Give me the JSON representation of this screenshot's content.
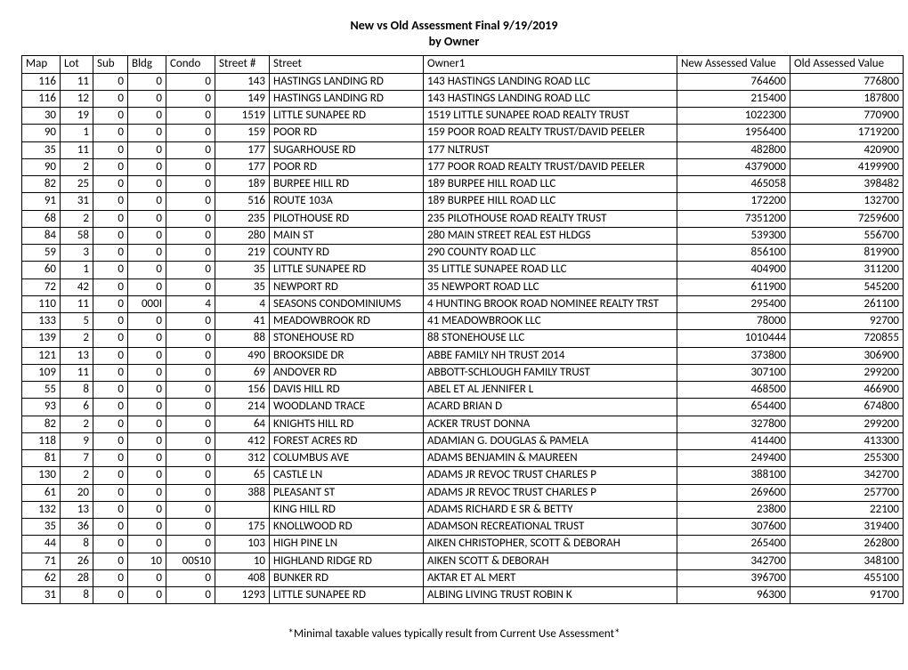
{
  "title_line1": "New vs Old Assessment Final 9/19/2019",
  "title_line2": "by Owner",
  "footnote": "*Minimal taxable values typically result from Current Use Assessment*",
  "columns": [
    "Map",
    "Lot",
    "Sub",
    "Bldg",
    "Condo",
    "Street #",
    "Street",
    "Owner1",
    "New Assessed Value",
    "Old Assessed Value"
  ],
  "rows": [
    [
      "116",
      "11",
      "0",
      "0",
      "0",
      "143",
      "HASTINGS LANDING RD",
      "143 HASTINGS LANDING ROAD LLC",
      "764600",
      "776800"
    ],
    [
      "116",
      "12",
      "0",
      "0",
      "0",
      "149",
      "HASTINGS LANDING RD",
      "143 HASTINGS LANDING ROAD LLC",
      "215400",
      "187800"
    ],
    [
      "30",
      "19",
      "0",
      "0",
      "0",
      "1519",
      "LITTLE SUNAPEE RD",
      "1519  LITTLE SUNAPEE ROAD REALTY TRUST",
      "1022300",
      "770900"
    ],
    [
      "90",
      "1",
      "0",
      "0",
      "0",
      "159",
      "POOR RD",
      "159 POOR ROAD REALTY TRUST/DAVID PEELER",
      "1956400",
      "1719200"
    ],
    [
      "35",
      "11",
      "0",
      "0",
      "0",
      "177",
      "SUGARHOUSE RD",
      "177 NLTRUST",
      "482800",
      "420900"
    ],
    [
      "90",
      "2",
      "0",
      "0",
      "0",
      "177",
      "POOR RD",
      "177 POOR ROAD REALTY TRUST/DAVID PEELER",
      "4379000",
      "4199900"
    ],
    [
      "82",
      "25",
      "0",
      "0",
      "0",
      "189",
      "BURPEE HILL RD",
      "189 BURPEE HILL ROAD LLC",
      "465058",
      "398482"
    ],
    [
      "91",
      "31",
      "0",
      "0",
      "0",
      "516",
      "ROUTE 103A",
      "189 BURPEE HILL ROAD LLC",
      "172200",
      "132700"
    ],
    [
      "68",
      "2",
      "0",
      "0",
      "0",
      "235",
      "PILOTHOUSE RD",
      "235 PILOTHOUSE ROAD REALTY TRUST",
      "7351200",
      "7259600"
    ],
    [
      "84",
      "58",
      "0",
      "0",
      "0",
      "280",
      "MAIN ST",
      "280 MAIN STREET REAL EST HLDGS",
      "539300",
      "556700"
    ],
    [
      "59",
      "3",
      "0",
      "0",
      "0",
      "219",
      "COUNTY RD",
      "290 COUNTY ROAD LLC",
      "856100",
      "819900"
    ],
    [
      "60",
      "1",
      "0",
      "0",
      "0",
      "35",
      "LITTLE SUNAPEE RD",
      "35 LITTLE SUNAPEE ROAD LLC",
      "404900",
      "311200"
    ],
    [
      "72",
      "42",
      "0",
      "0",
      "0",
      "35",
      "NEWPORT RD",
      "35 NEWPORT ROAD LLC",
      "611900",
      "545200"
    ],
    [
      "110",
      "11",
      "0",
      "000I",
      "4",
      "4",
      "SEASONS CONDOMINIUMS",
      "4 HUNTING BROOK ROAD NOMINEE REALTY TRST",
      "295400",
      "261100"
    ],
    [
      "133",
      "5",
      "0",
      "0",
      "0",
      "41",
      "MEADOWBROOK RD",
      "41 MEADOWBROOK LLC",
      "78000",
      "92700"
    ],
    [
      "139",
      "2",
      "0",
      "0",
      "0",
      "88",
      "STONEHOUSE RD",
      "88 STONEHOUSE LLC",
      "1010444",
      "720855"
    ],
    [
      "121",
      "13",
      "0",
      "0",
      "0",
      "490",
      "BROOKSIDE DR",
      "ABBE FAMILY NH TRUST 2014",
      "373800",
      "306900"
    ],
    [
      "109",
      "11",
      "0",
      "0",
      "0",
      "69",
      "ANDOVER RD",
      "ABBOTT-SCHLOUGH FAMILY TRUST",
      "307100",
      "299200"
    ],
    [
      "55",
      "8",
      "0",
      "0",
      "0",
      "156",
      "DAVIS HILL RD",
      "ABEL ET AL JENNIFER L",
      "468500",
      "466900"
    ],
    [
      "93",
      "6",
      "0",
      "0",
      "0",
      "214",
      "WOODLAND TRACE",
      "ACARD BRIAN D",
      "654400",
      "674800"
    ],
    [
      "82",
      "2",
      "0",
      "0",
      "0",
      "64",
      "KNIGHTS HILL RD",
      "ACKER TRUST DONNA",
      "327800",
      "299200"
    ],
    [
      "118",
      "9",
      "0",
      "0",
      "0",
      "412",
      "FOREST ACRES RD",
      "ADAMIAN G. DOUGLAS & PAMELA",
      "414400",
      "413300"
    ],
    [
      "81",
      "7",
      "0",
      "0",
      "0",
      "312",
      "COLUMBUS AVE",
      "ADAMS BENJAMIN & MAUREEN",
      "249400",
      "255300"
    ],
    [
      "130",
      "2",
      "0",
      "0",
      "0",
      "65",
      "CASTLE LN",
      "ADAMS JR REVOC TRUST CHARLES P",
      "388100",
      "342700"
    ],
    [
      "61",
      "20",
      "0",
      "0",
      "0",
      "388",
      "PLEASANT ST",
      "ADAMS JR REVOC TRUST CHARLES P",
      "269600",
      "257700"
    ],
    [
      "132",
      "13",
      "0",
      "0",
      "0",
      "",
      "KING HILL RD",
      "ADAMS RICHARD E SR & BETTY",
      "23800",
      "22100"
    ],
    [
      "35",
      "36",
      "0",
      "0",
      "0",
      "175",
      "KNOLLWOOD RD",
      "ADAMSON RECREATIONAL TRUST",
      "307600",
      "319400"
    ],
    [
      "44",
      "8",
      "0",
      "0",
      "0",
      "103",
      "HIGH PINE LN",
      "AIKEN CHRISTOPHER, SCOTT & DEBORAH",
      "265400",
      "262800"
    ],
    [
      "71",
      "26",
      "0",
      "10",
      "00S10",
      "10",
      "HIGHLAND RIDGE RD",
      "AIKEN SCOTT & DEBORAH",
      "342700",
      "348100"
    ],
    [
      "62",
      "28",
      "0",
      "0",
      "0",
      "408",
      "BUNKER RD",
      "AKTAR ET AL MERT",
      "396700",
      "455100"
    ],
    [
      "31",
      "8",
      "0",
      "0",
      "0",
      "1293",
      "LITTLE SUNAPEE RD",
      "ALBING LIVING TRUST ROBIN K",
      "96300",
      "91700"
    ]
  ]
}
